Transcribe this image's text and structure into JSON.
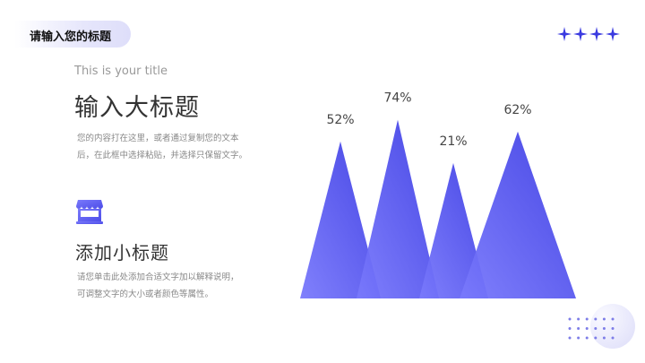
{
  "header": {
    "tag": "请输入您的标题"
  },
  "main": {
    "subtitle_en": "This is your title",
    "title": "输入大标题",
    "body_lines": [
      "您的内容打在这里，或者通过复制您的文本",
      "后，在此框中选择粘贴，并选择只保留文字。"
    ],
    "icon": "shop-icon",
    "subheading": "添加小标题",
    "sub_lines": [
      "请您单击此处添加合适文字加以解释说明，",
      "可调整文字的大小或者颜色等属性。"
    ]
  },
  "colors": {
    "accent": "#4b4be8",
    "accent_light": "#7878fb"
  },
  "chart_data": {
    "type": "bar",
    "mark": "triangle",
    "values": [
      52,
      74,
      21,
      62
    ],
    "labels": [
      "52%",
      "74%",
      "21%",
      "62%"
    ]
  }
}
